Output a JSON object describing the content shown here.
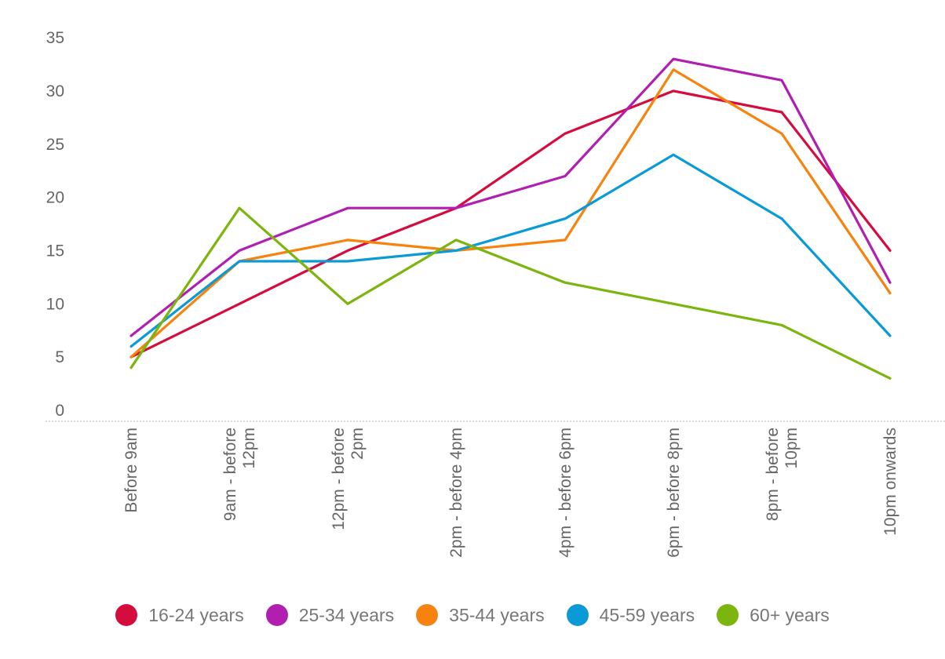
{
  "chart_data": {
    "type": "line",
    "title": "",
    "xlabel": "",
    "ylabel": "",
    "categories": [
      [
        "Before 9am"
      ],
      [
        "9am - before",
        "12pm"
      ],
      [
        "12pm - before",
        "2pm"
      ],
      [
        "2pm - before 4pm"
      ],
      [
        "4pm - before 6pm"
      ],
      [
        "6pm - before 8pm"
      ],
      [
        "8pm - before",
        "10pm"
      ],
      [
        "10pm onwards"
      ]
    ],
    "ylim": [
      0,
      35
    ],
    "yticks": [
      "0",
      "5",
      "10",
      "15",
      "20",
      "25",
      "30",
      "35"
    ],
    "grid": false,
    "legend_position": "bottom",
    "series": [
      {
        "name": "16-24 years",
        "color": "#d40d3e",
        "values": [
          5,
          10,
          15,
          19,
          26,
          30,
          28,
          15
        ]
      },
      {
        "name": "25-34 years",
        "color": "#b01fb0",
        "values": [
          7,
          15,
          19,
          19,
          22,
          33,
          31,
          12
        ]
      },
      {
        "name": "35-44 years",
        "color": "#f7830f",
        "values": [
          5,
          14,
          16,
          15,
          16,
          32,
          26,
          11
        ]
      },
      {
        "name": "45-59 years",
        "color": "#0a9ad6",
        "values": [
          6,
          14,
          14,
          15,
          18,
          24,
          18,
          7
        ]
      },
      {
        "name": "60+ years",
        "color": "#7cb50e",
        "values": [
          4,
          19,
          10,
          16,
          12,
          10,
          8,
          3
        ]
      }
    ]
  }
}
